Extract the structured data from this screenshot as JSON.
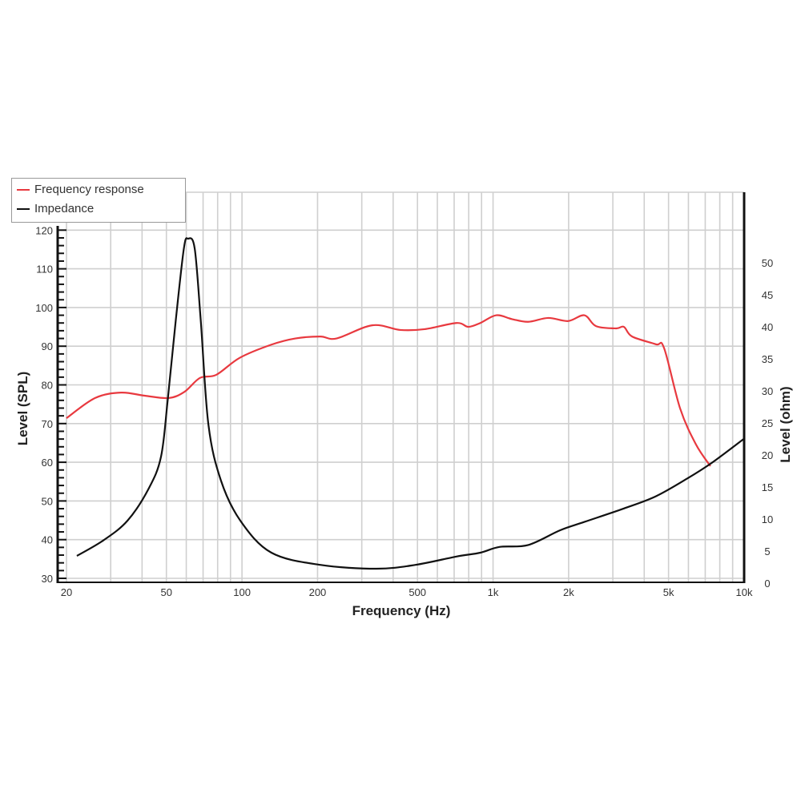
{
  "chart_data": {
    "type": "line",
    "xlabel": "Frequency (Hz)",
    "ylabel_left": "Level (SPL)",
    "ylabel_right": "Level (ohm)",
    "xscale": "log",
    "xlim": [
      20,
      10000
    ],
    "ylim_left": [
      30,
      120
    ],
    "ylim_right": [
      0,
      50
    ],
    "x_ticks": [
      {
        "v": 20,
        "label": "20"
      },
      {
        "v": 50,
        "label": "50"
      },
      {
        "v": 100,
        "label": "100"
      },
      {
        "v": 200,
        "label": "200"
      },
      {
        "v": 500,
        "label": "500"
      },
      {
        "v": 1000,
        "label": "1k"
      },
      {
        "v": 2000,
        "label": "2k"
      },
      {
        "v": 5000,
        "label": "5k"
      },
      {
        "v": 10000,
        "label": "10k"
      }
    ],
    "y_left_ticks": [
      "30",
      "40",
      "50",
      "60",
      "70",
      "80",
      "90",
      "100",
      "110",
      "120"
    ],
    "y_right_ticks": [
      "0",
      "5",
      "10",
      "15",
      "20",
      "25",
      "30",
      "35",
      "40",
      "45",
      "50"
    ],
    "grid": true,
    "legend_position": "top-left",
    "colors": {
      "frequency_response": "#e8393f",
      "impedance": "#111111"
    },
    "series": [
      {
        "name": "Frequency response",
        "axis": "left",
        "x": [
          20,
          26,
          33,
          41,
          51,
          59,
          68,
          79,
          98,
          131,
          163,
          205,
          238,
          330,
          427,
          534,
          715,
          797,
          890,
          1030,
          1190,
          1380,
          1660,
          1990,
          2310,
          2570,
          3090,
          3320,
          3580,
          4450,
          4800,
          5560,
          6430,
          7340
        ],
        "y": [
          71.4,
          76.6,
          78,
          77.2,
          76.6,
          78.2,
          81.8,
          82.6,
          87,
          90.4,
          92,
          92.5,
          92,
          95.4,
          94.2,
          94.4,
          96,
          95,
          96,
          98,
          97,
          96.3,
          97.3,
          96.5,
          98,
          95.2,
          94.6,
          95,
          92.5,
          90.5,
          89.5,
          73.9,
          64.6,
          59
        ]
      },
      {
        "name": "Impedance",
        "axis": "right",
        "x": [
          22,
          28,
          35,
          42.5,
          47.6,
          50.6,
          54.5,
          58.7,
          61,
          64.8,
          68.5,
          73.5,
          82.4,
          98.5,
          131,
          205,
          343,
          491,
          715,
          890,
          1060,
          1380,
          1850,
          2310,
          3320,
          4450,
          5950,
          7420,
          10000
        ],
        "y": [
          3.5,
          5.9,
          9,
          14,
          19,
          27.8,
          40.3,
          51.5,
          53,
          51.5,
          40.3,
          24,
          15.3,
          9,
          4,
          2.1,
          1.5,
          2.1,
          3.4,
          4,
          4.9,
          5.2,
          7.5,
          8.8,
          10.9,
          12.8,
          15.6,
          18,
          21.8
        ]
      }
    ]
  }
}
